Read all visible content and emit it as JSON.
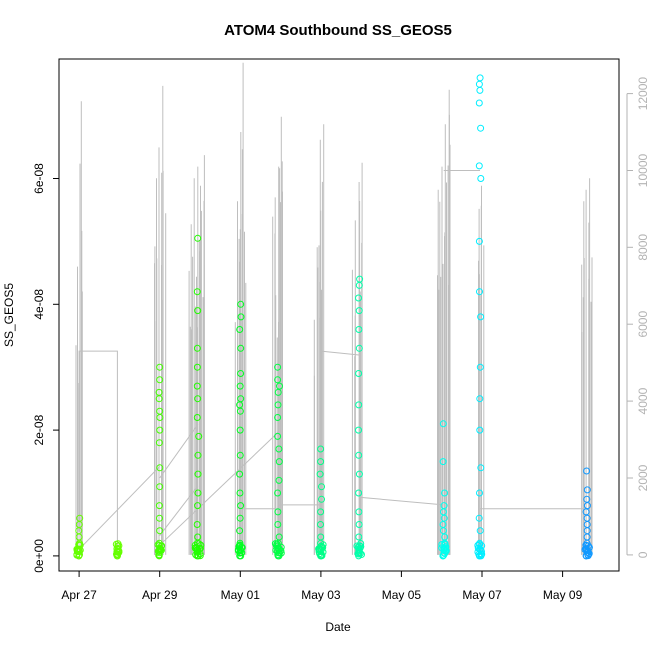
{
  "chart_data": {
    "type": "scatter",
    "title": "ATOM4 Southbound SS_GEOS5",
    "xlabel": "Date",
    "ylabel": "SS_GEOS5",
    "x_ticks": [
      "Apr 27",
      "Apr 29",
      "May 01",
      "May 03",
      "May 05",
      "May 07",
      "May 09"
    ],
    "x_tick_days": [
      27,
      29,
      31,
      33,
      35,
      37,
      39
    ],
    "xlim_days": [
      26.5,
      40.4
    ],
    "y_ticks": [
      "0e+00",
      "2e-08",
      "4e-08",
      "6e-08"
    ],
    "y_tick_values": [
      0,
      2e-08,
      4e-08,
      6e-08
    ],
    "ylim": [
      -2.4e-09,
      7.9e-08
    ],
    "y2_ticks": [
      "0",
      "2000",
      "4000",
      "6000",
      "8000",
      "10000",
      "12000"
    ],
    "y2_tick_values": [
      0,
      2000,
      4000,
      6000,
      8000,
      10000,
      12000
    ],
    "y2lim": [
      -420,
      12900
    ],
    "grid": false,
    "colors": {
      "line": "#bebebe",
      "axis": "#000000",
      "right_axis": "#b3b3b3"
    },
    "series": [
      {
        "values_kind": "SS_GEOS5 points (open circles)",
        "clusters": [
          {
            "day": 27.0,
            "color": "#66ff00",
            "spread": 0.06,
            "points": [
              0,
              0,
              1e-09,
              2e-09,
              3e-09,
              4e-09,
              5e-09,
              6e-09
            ]
          },
          {
            "day": 27.95,
            "color": "#66ff00",
            "spread": 0.04,
            "points": [
              0,
              0
            ]
          },
          {
            "day": 29.0,
            "color": "#44ff00",
            "spread": 0.05,
            "points": [
              0,
              1e-09,
              2e-09,
              4e-09,
              6e-09,
              8e-09,
              1.1e-08,
              1.4e-08,
              1.8e-08,
              2e-08,
              2.2e-08,
              2.3e-08,
              2.5e-08,
              2.6e-08,
              2.8e-08,
              3e-08
            ]
          },
          {
            "day": 29.95,
            "color": "#22ff00",
            "spread": 0.07,
            "points": [
              0,
              0,
              1e-09,
              2e-09,
              3e-09,
              5e-09,
              8e-09,
              1e-08,
              1.3e-08,
              1.6e-08,
              1.9e-08,
              2.2e-08,
              2.5e-08,
              2.7e-08,
              3e-08,
              3.3e-08,
              3.9e-08,
              4.2e-08,
              5.05e-08
            ]
          },
          {
            "day": 31.0,
            "color": "#00ff22",
            "spread": 0.06,
            "points": [
              0,
              0,
              1e-09,
              2e-09,
              4e-09,
              6e-09,
              8e-09,
              1e-08,
              1.3e-08,
              1.6e-08,
              2e-08,
              2.3e-08,
              2.4e-08,
              2.5e-08,
              2.7e-08,
              2.9e-08,
              3.3e-08,
              3.6e-08,
              3.8e-08,
              4e-08
            ]
          },
          {
            "day": 31.95,
            "color": "#00ff44",
            "spread": 0.08,
            "points": [
              0,
              0,
              1e-09,
              2e-09,
              3e-09,
              5e-09,
              7e-09,
              1e-08,
              1.2e-08,
              1.5e-08,
              1.7e-08,
              1.9e-08,
              2.2e-08,
              2.4e-08,
              2.6e-08,
              2.7e-08,
              2.8e-08,
              3e-08
            ]
          },
          {
            "day": 33.0,
            "color": "#00ff88",
            "spread": 0.06,
            "points": [
              0,
              0,
              1e-09,
              2e-09,
              3e-09,
              5e-09,
              7e-09,
              9e-09,
              1.1e-08,
              1.3e-08,
              1.5e-08,
              1.7e-08
            ]
          },
          {
            "day": 33.95,
            "color": "#00ffaa",
            "spread": 0.06,
            "points": [
              0,
              1e-09,
              3e-09,
              5e-09,
              7e-09,
              1e-08,
              1.3e-08,
              1.6e-08,
              2e-08,
              2.4e-08,
              2.9e-08,
              3.3e-08,
              3.6e-08,
              3.9e-08,
              4.1e-08,
              4.3e-08,
              4.4e-08
            ]
          },
          {
            "day": 36.05,
            "color": "#00ffee",
            "spread": 0.07,
            "points": [
              0,
              0,
              1e-09,
              2e-09,
              3e-09,
              4e-09,
              5e-09,
              6e-09,
              7e-09,
              8e-09,
              1e-08,
              1.5e-08,
              2.1e-08
            ]
          },
          {
            "day": 36.95,
            "color": "#00eeff",
            "spread": 0.07,
            "points": [
              0,
              0,
              1e-09,
              2e-09,
              4e-09,
              6e-09,
              1e-08,
              1.4e-08,
              2e-08,
              2.5e-08,
              3e-08,
              3.8e-08,
              4.2e-08,
              5e-08,
              6e-08,
              6.2e-08,
              6.8e-08,
              7.2e-08,
              7.4e-08,
              7.5e-08,
              7.6e-08
            ]
          },
          {
            "day": 39.6,
            "color": "#1199ff",
            "spread": 0.07,
            "points": [
              0,
              0,
              1e-09,
              2e-09,
              3e-09,
              4e-09,
              5e-09,
              6e-09,
              7e-09,
              8e-09,
              9e-09,
              1.05e-08,
              1.35e-08
            ]
          }
        ]
      },
      {
        "values_kind": "right-axis line (grey)",
        "spike_groups": [
          {
            "day": 27.0,
            "peaks": [
              7500,
              11800
            ]
          },
          {
            "day": 29.0,
            "peaks": [
              9800,
              10600,
              12200
            ]
          },
          {
            "day": 29.95,
            "peaks": [
              8600,
              9800,
              10100,
              9600,
              10400
            ]
          },
          {
            "day": 31.0,
            "peaks": [
              9200,
              11000,
              12800
            ]
          },
          {
            "day": 31.95,
            "peaks": [
              9300,
              10100,
              11400
            ]
          },
          {
            "day": 33.0,
            "peaks": [
              8000,
              10800,
              11200
            ]
          },
          {
            "day": 33.95,
            "peaks": [
              8700,
              9700,
              10200
            ]
          },
          {
            "day": 36.05,
            "peaks": [
              9500,
              10100,
              11200,
              12100
            ]
          },
          {
            "day": 36.95,
            "peaks": [
              9000,
              9600
            ]
          },
          {
            "day": 39.6,
            "peaks": [
              9200,
              9500,
              9800
            ]
          }
        ],
        "connectors": [
          [
            [
              27.0,
              600
            ],
            [
              27.0,
              5300
            ],
            [
              27.95,
              5300
            ],
            [
              27.95,
              0
            ]
          ],
          [
            [
              27.05,
              200
            ],
            [
              29.0,
              2300
            ]
          ],
          [
            [
              29.0,
              2000
            ],
            [
              29.95,
              3400
            ]
          ],
          [
            [
              29.0,
              500
            ],
            [
              29.95,
              1800
            ]
          ],
          [
            [
              29.05,
              300
            ],
            [
              31.95,
              3200
            ]
          ],
          [
            [
              31.0,
              1200
            ],
            [
              31.95,
              1200
            ]
          ],
          [
            [
              31.95,
              1300
            ],
            [
              33.0,
              1300
            ]
          ],
          [
            [
              33.0,
              5300
            ],
            [
              33.95,
              5200
            ]
          ],
          [
            [
              33.95,
              1500
            ],
            [
              36.05,
              1300
            ]
          ],
          [
            [
              36.05,
              10000
            ],
            [
              36.95,
              10000
            ]
          ],
          [
            [
              36.95,
              1200
            ],
            [
              39.6,
              1200
            ]
          ]
        ]
      }
    ]
  }
}
